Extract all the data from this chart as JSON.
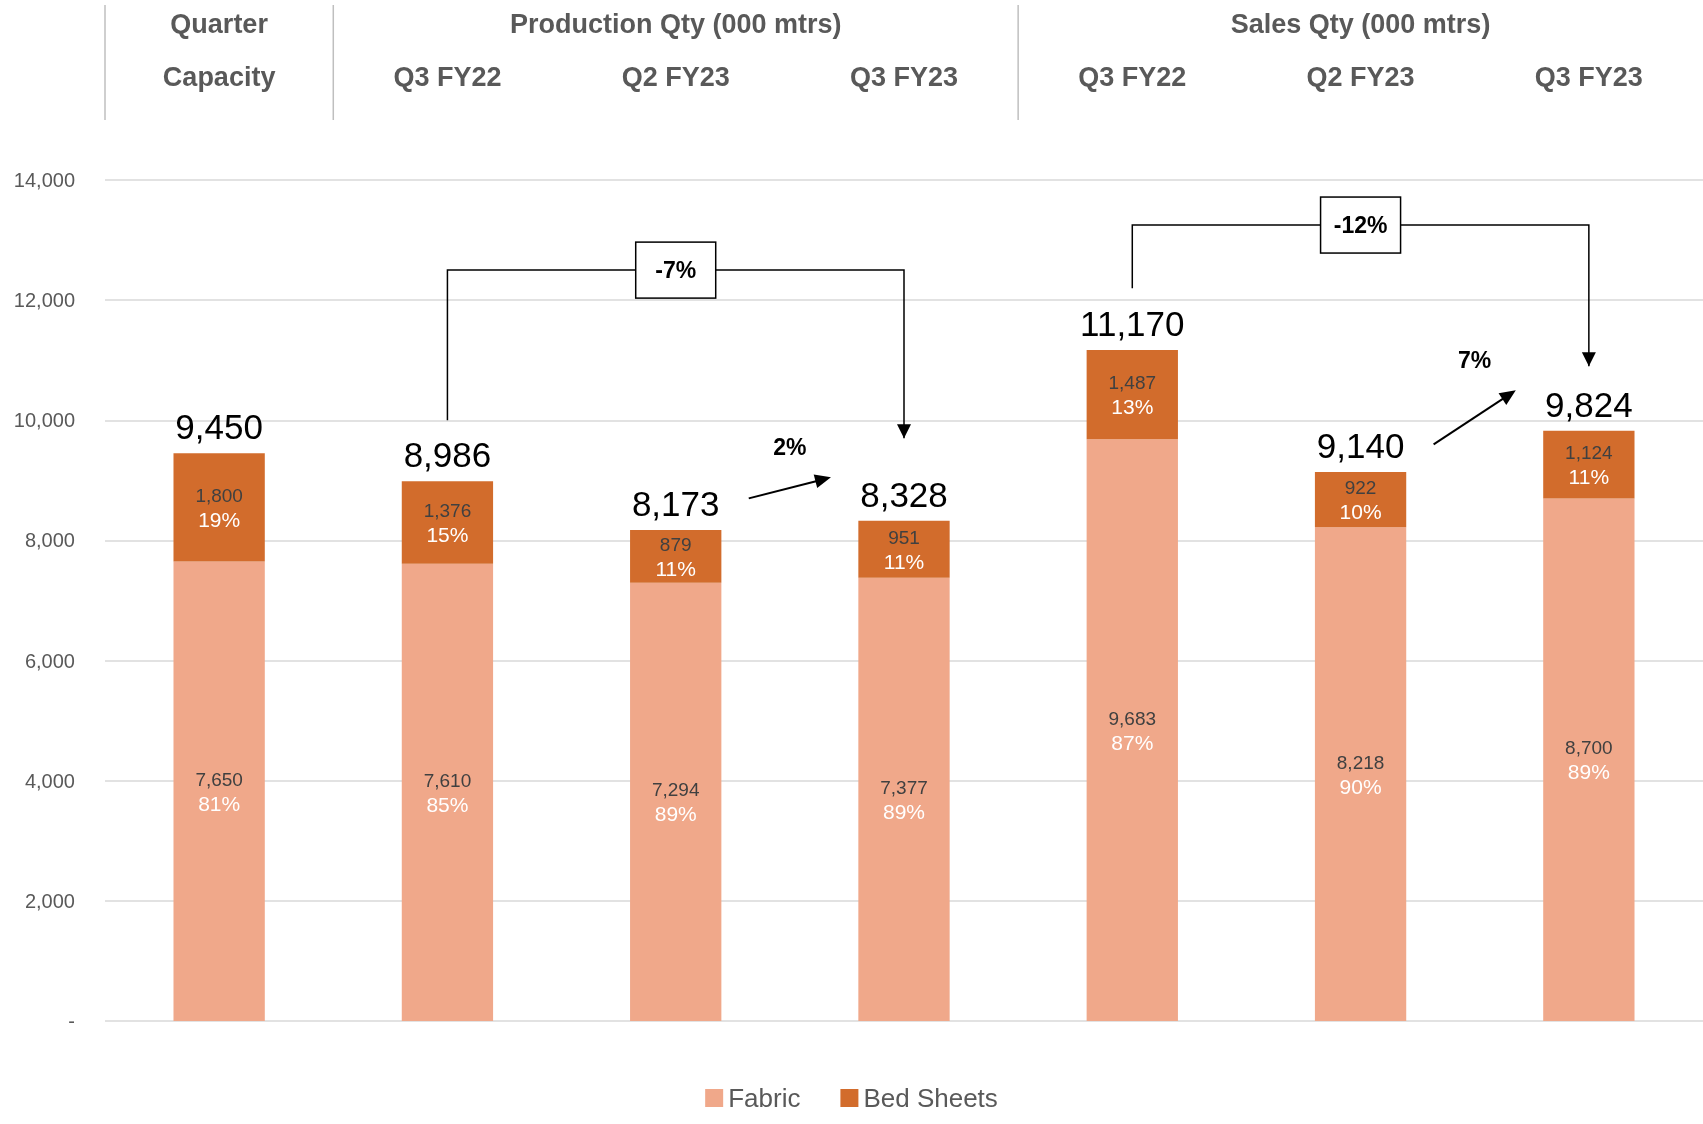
{
  "chart_data": {
    "type": "bar",
    "stacked": true,
    "categories": [
      "Capacity",
      "Q3 FY22",
      "Q2 FY23",
      "Q3 FY23",
      "Q3 FY22",
      "Q2 FY23",
      "Q3 FY23"
    ],
    "series": [
      {
        "name": "Fabric",
        "color": "#f0a88a",
        "values": [
          7650,
          7610,
          7294,
          7377,
          9683,
          8218,
          8700
        ],
        "value_labels": [
          "7,650\n81%",
          "7,610\n85%",
          "7,294\n89%",
          "7,377\n89%",
          "9,683\n87%",
          "8,218\n90%",
          "8,700\n89%"
        ]
      },
      {
        "name": "Bed Sheets",
        "color": "#d26c2c",
        "values": [
          1800,
          1376,
          879,
          951,
          1487,
          922,
          1124
        ],
        "value_labels": [
          "1,800\n19%",
          "1,376\n15%",
          "879\n11%",
          "951\n11%",
          "1,487\n13%",
          "922\n10%",
          "1,124\n11%"
        ]
      }
    ],
    "totals": [
      "9,450",
      "8,986",
      "8,173",
      "8,328",
      "11,170",
      "9,140",
      "9,824"
    ],
    "annotations": [
      "Quarter",
      "Production Qty (000 mtrs)",
      "Sales Qty (000 mtrs)",
      "-7%",
      "-12%",
      "2%",
      "7%"
    ],
    "ylim": [
      0,
      14000
    ],
    "yticks": [
      {
        "value": 0,
        "label": "-"
      },
      {
        "value": 2000,
        "label": "2,000"
      },
      {
        "value": 4000,
        "label": "4,000"
      },
      {
        "value": 6000,
        "label": "6,000"
      },
      {
        "value": 8000,
        "label": "8,000"
      },
      {
        "value": 10000,
        "label": "10,000"
      },
      {
        "value": 12000,
        "label": "12,000"
      },
      {
        "value": 14000,
        "label": "14,000"
      }
    ],
    "grid": "y",
    "legend": "bottom"
  }
}
